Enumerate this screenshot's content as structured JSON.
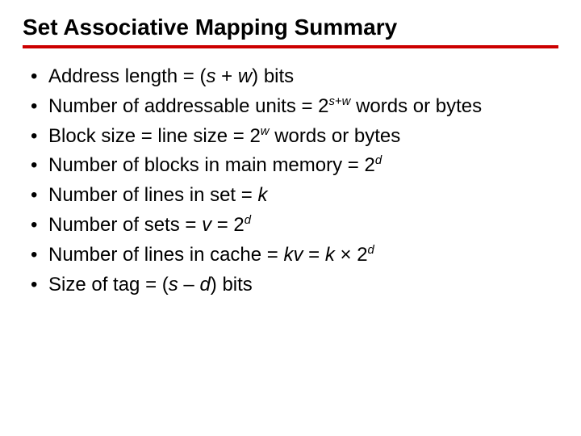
{
  "title": "Set Associative Mapping Summary",
  "bullets": {
    "b0": {
      "pre": "Address length = (",
      "v1": "s",
      "mid1": " + ",
      "v2": "w",
      "post": ") bits"
    },
    "b1": {
      "pre": "Number of addressable units = 2",
      "exp_v1": "s",
      "exp_plus": "+",
      "exp_v2": "w",
      "post": " words or bytes"
    },
    "b2": {
      "pre": "Block size = line size = 2",
      "exp": "w",
      "post": " words or bytes"
    },
    "b3": {
      "pre": "Number of blocks in main memory = 2",
      "exp": "d"
    },
    "b4": {
      "pre": "Number of lines in set = ",
      "v": "k"
    },
    "b5": {
      "pre": "Number of sets = ",
      "v": "v",
      "mid": " = 2",
      "exp": "d"
    },
    "b6": {
      "pre": "Number of lines in cache = ",
      "v1": "kv",
      "mid1": " = ",
      "v2": "k",
      "mid2": " × 2",
      "exp": "d"
    },
    "b7": {
      "pre": "Size of tag = (",
      "v1": "s",
      "mid": " – ",
      "v2": "d",
      "post": ") bits"
    }
  },
  "colors": {
    "rule": "#cc0000",
    "text": "#000000",
    "bg": "#ffffff"
  }
}
